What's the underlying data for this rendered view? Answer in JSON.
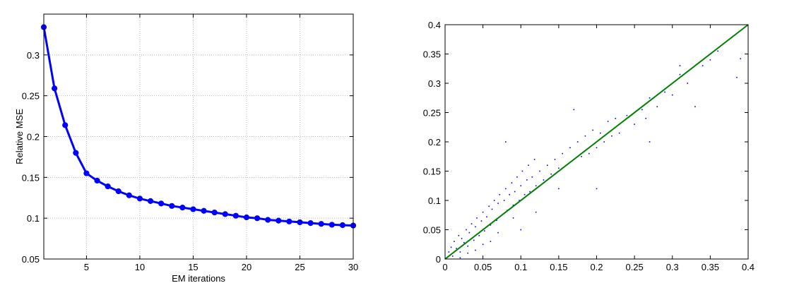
{
  "chart_data": [
    {
      "type": "line",
      "title": "",
      "xlabel": "EM iterations",
      "ylabel": "Relative MSE",
      "xlim": [
        1,
        30
      ],
      "ylim": [
        0.05,
        0.35
      ],
      "xticks": [
        5,
        10,
        15,
        20,
        25,
        30
      ],
      "yticks": [
        0.05,
        0.1,
        0.15,
        0.2,
        0.25,
        0.3
      ],
      "xtick_labels": [
        "5",
        "10",
        "15",
        "20",
        "25",
        "30"
      ],
      "ytick_labels": [
        "0.05",
        "0.1",
        "0.15",
        "0.2",
        "0.25",
        "0.3"
      ],
      "grid": true,
      "line_color": "#0000ff",
      "series": [
        {
          "x": [
            1,
            2,
            3,
            4,
            5,
            6,
            7,
            8,
            9,
            10,
            11,
            12,
            13,
            14,
            15,
            16,
            17,
            18,
            19,
            20,
            21,
            22,
            23,
            24,
            25,
            26,
            27,
            28,
            29,
            30
          ],
          "values": [
            0.334,
            0.259,
            0.214,
            0.18,
            0.155,
            0.146,
            0.139,
            0.133,
            0.128,
            0.124,
            0.121,
            0.118,
            0.115,
            0.113,
            0.111,
            0.109,
            0.107,
            0.105,
            0.103,
            0.101,
            0.1,
            0.098,
            0.097,
            0.096,
            0.095,
            0.094,
            0.093,
            0.092,
            0.0915,
            0.091
          ]
        }
      ]
    },
    {
      "type": "scatter",
      "title": "",
      "xlabel": "",
      "ylabel": "",
      "xlim": [
        0,
        0.4
      ],
      "ylim": [
        0,
        0.4
      ],
      "xticks": [
        0,
        0.05,
        0.1,
        0.15,
        0.2,
        0.25,
        0.3,
        0.35,
        0.4
      ],
      "yticks": [
        0,
        0.05,
        0.1,
        0.15,
        0.2,
        0.25,
        0.3,
        0.35,
        0.4
      ],
      "xtick_labels": [
        "0",
        "0.05",
        "0.1",
        "0.15",
        "0.2",
        "0.25",
        "0.3",
        "0.35",
        "0.4"
      ],
      "ytick_labels": [
        "0",
        "0.05",
        "0.1",
        "0.15",
        "0.2",
        "0.25",
        "0.3",
        "0.35",
        "0.4"
      ],
      "grid": false,
      "point_color": "#0000ff",
      "reference_line": {
        "x": [
          0,
          0.4
        ],
        "y": [
          0,
          0.4
        ],
        "color": "#008000"
      },
      "points": [
        [
          0.005,
          0.012
        ],
        [
          0.008,
          0.02
        ],
        [
          0.01,
          0.005
        ],
        [
          0.012,
          0.03
        ],
        [
          0.015,
          0.018
        ],
        [
          0.018,
          0.04
        ],
        [
          0.02,
          0.012
        ],
        [
          0.022,
          0.035
        ],
        [
          0.025,
          0.028
        ],
        [
          0.028,
          0.05
        ],
        [
          0.03,
          0.022
        ],
        [
          0.032,
          0.045
        ],
        [
          0.035,
          0.06
        ],
        [
          0.038,
          0.032
        ],
        [
          0.04,
          0.055
        ],
        [
          0.042,
          0.07
        ],
        [
          0.045,
          0.04
        ],
        [
          0.048,
          0.065
        ],
        [
          0.05,
          0.08
        ],
        [
          0.052,
          0.048
        ],
        [
          0.055,
          0.072
        ],
        [
          0.058,
          0.09
        ],
        [
          0.06,
          0.058
        ],
        [
          0.062,
          0.085
        ],
        [
          0.065,
          0.1
        ],
        [
          0.068,
          0.066
        ],
        [
          0.07,
          0.095
        ],
        [
          0.072,
          0.11
        ],
        [
          0.075,
          0.075
        ],
        [
          0.078,
          0.1
        ],
        [
          0.08,
          0.12
        ],
        [
          0.082,
          0.083
        ],
        [
          0.085,
          0.11
        ],
        [
          0.088,
          0.13
        ],
        [
          0.09,
          0.092
        ],
        [
          0.092,
          0.115
        ],
        [
          0.095,
          0.14
        ],
        [
          0.098,
          0.1
        ],
        [
          0.1,
          0.125
        ],
        [
          0.102,
          0.15
        ],
        [
          0.105,
          0.11
        ],
        [
          0.108,
          0.135
        ],
        [
          0.11,
          0.16
        ],
        [
          0.112,
          0.115
        ],
        [
          0.115,
          0.14
        ],
        [
          0.118,
          0.17
        ],
        [
          0.12,
          0.125
        ],
        [
          0.125,
          0.15
        ],
        [
          0.13,
          0.135
        ],
        [
          0.135,
          0.16
        ],
        [
          0.14,
          0.145
        ],
        [
          0.145,
          0.17
        ],
        [
          0.15,
          0.155
        ],
        [
          0.155,
          0.18
        ],
        [
          0.16,
          0.16
        ],
        [
          0.165,
          0.19
        ],
        [
          0.17,
          0.17
        ],
        [
          0.175,
          0.2
        ],
        [
          0.18,
          0.175
        ],
        [
          0.185,
          0.21
        ],
        [
          0.19,
          0.18
        ],
        [
          0.195,
          0.22
        ],
        [
          0.2,
          0.19
        ],
        [
          0.205,
          0.215
        ],
        [
          0.21,
          0.2
        ],
        [
          0.215,
          0.235
        ],
        [
          0.22,
          0.21
        ],
        [
          0.225,
          0.24
        ],
        [
          0.23,
          0.215
        ],
        [
          0.24,
          0.245
        ],
        [
          0.25,
          0.23
        ],
        [
          0.26,
          0.255
        ],
        [
          0.265,
          0.24
        ],
        [
          0.27,
          0.275
        ],
        [
          0.28,
          0.26
        ],
        [
          0.29,
          0.285
        ],
        [
          0.3,
          0.28
        ],
        [
          0.31,
          0.315
        ],
        [
          0.32,
          0.3
        ],
        [
          0.33,
          0.26
        ],
        [
          0.34,
          0.33
        ],
        [
          0.35,
          0.34
        ],
        [
          0.36,
          0.355
        ],
        [
          0.385,
          0.31
        ],
        [
          0.39,
          0.342
        ],
        [
          0.31,
          0.33
        ],
        [
          0.27,
          0.2
        ],
        [
          0.08,
          0.2
        ],
        [
          0.17,
          0.255
        ],
        [
          0.2,
          0.12
        ],
        [
          0.1,
          0.05
        ],
        [
          0.12,
          0.08
        ],
        [
          0.15,
          0.12
        ],
        [
          0.06,
          0.03
        ],
        [
          0.03,
          0.01
        ],
        [
          0.02,
          0.002
        ],
        [
          0.04,
          0.015
        ],
        [
          0.05,
          0.025
        ],
        [
          0.07,
          0.045
        ],
        [
          0.09,
          0.07
        ]
      ]
    }
  ]
}
